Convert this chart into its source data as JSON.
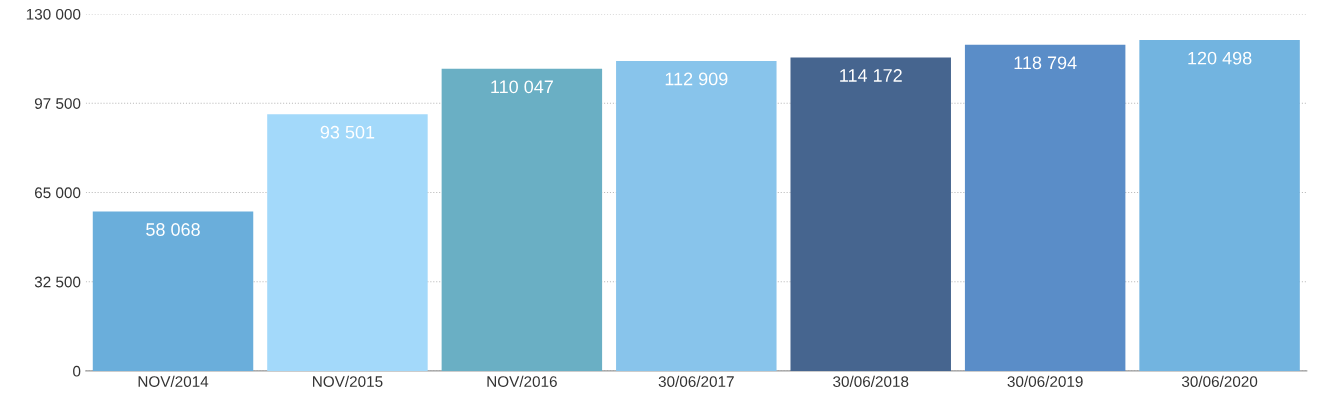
{
  "chart_data": {
    "type": "bar",
    "categories": [
      "NOV/2014",
      "NOV/2015",
      "NOV/2016",
      "30/06/2017",
      "30/06/2018",
      "30/06/2019",
      "30/06/2020"
    ],
    "values": [
      58068,
      93501,
      110047,
      112909,
      114172,
      118794,
      120498
    ],
    "colors": [
      "#6aaedb",
      "#a3d9fa",
      "#6aafc4",
      "#88c4eb",
      "#46658f",
      "#5a8dc8",
      "#72b4e0"
    ],
    "value_labels": [
      "58 068",
      "93 501",
      "110 047",
      "112 909",
      "114 172",
      "118 794",
      "120 498"
    ],
    "ylim": [
      0,
      130000
    ],
    "yticks": [
      0,
      {
        "value": 32500,
        "label": "32 500"
      },
      {
        "value": 65000,
        "label": "65 000"
      },
      {
        "value": 97500,
        "label": "97 500"
      },
      {
        "value": 130000,
        "label": "130 000"
      }
    ],
    "grid": "y",
    "legend": false
  }
}
